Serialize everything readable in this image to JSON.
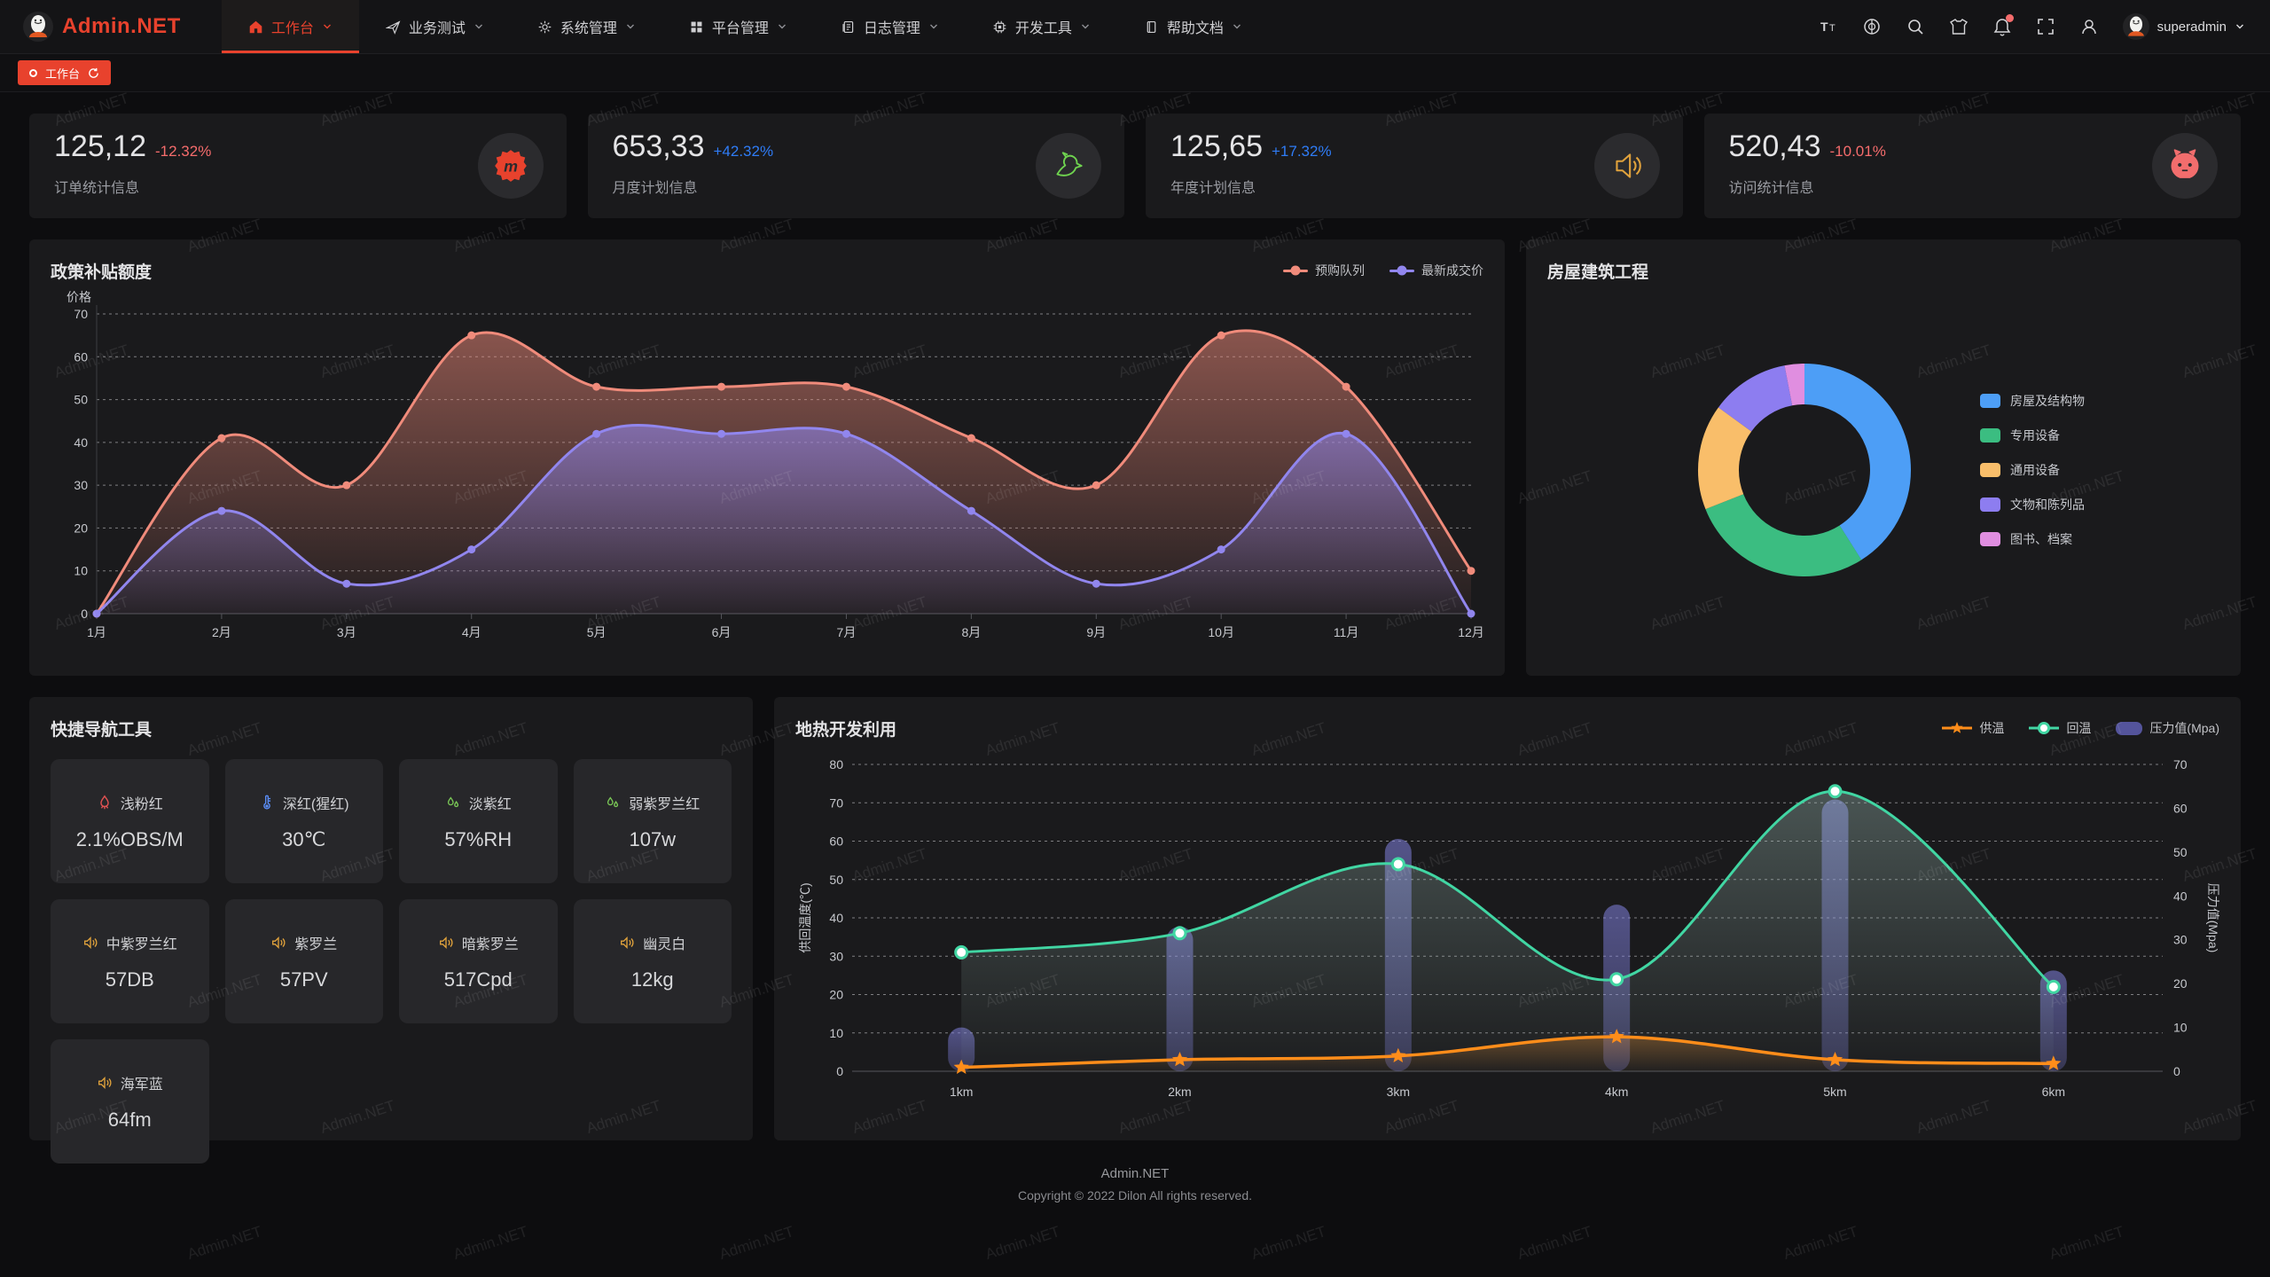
{
  "brand": {
    "name": "Admin.NET"
  },
  "colors": {
    "accent": "#e8422d",
    "delta_up": "#2f7cf6",
    "delta_down": "#f56c6c"
  },
  "header": {
    "menu": [
      {
        "label": "工作台",
        "icon": "home-icon",
        "active": true
      },
      {
        "label": "业务测试",
        "icon": "send-icon",
        "active": false
      },
      {
        "label": "系统管理",
        "icon": "gear-icon",
        "active": false
      },
      {
        "label": "平台管理",
        "icon": "grid-icon",
        "active": false
      },
      {
        "label": "日志管理",
        "icon": "log-icon",
        "active": false
      },
      {
        "label": "开发工具",
        "icon": "cpu-icon",
        "active": false
      },
      {
        "label": "帮助文档",
        "icon": "book-icon",
        "active": false
      }
    ],
    "actions": [
      "font-size",
      "language",
      "search",
      "theme",
      "notifications",
      "fullscreen",
      "user-manage"
    ],
    "user": {
      "name": "superadmin"
    }
  },
  "tabbar": {
    "active_tab": "工作台"
  },
  "stat_cards": [
    {
      "value": "125,12",
      "delta": "-12.32%",
      "trend": "down",
      "label": "订单统计信息",
      "icon": "meetup-icon"
    },
    {
      "value": "653,33",
      "delta": "+42.32%",
      "trend": "up",
      "label": "月度计划信息",
      "icon": "dove-icon"
    },
    {
      "value": "125,65",
      "delta": "+17.32%",
      "trend": "up",
      "label": "年度计划信息",
      "icon": "speaker-icon"
    },
    {
      "value": "520,43",
      "delta": "-10.01%",
      "trend": "down",
      "label": "访问统计信息",
      "icon": "octocat-icon"
    }
  ],
  "chart_data": [
    {
      "type": "line",
      "title": "政策补贴额度",
      "ylabel": "价格",
      "ylim": [
        0,
        70
      ],
      "y_ticks": [
        0,
        10,
        20,
        30,
        40,
        50,
        60,
        70
      ],
      "categories": [
        "1月",
        "2月",
        "3月",
        "4月",
        "5月",
        "6月",
        "7月",
        "8月",
        "9月",
        "10月",
        "11月",
        "12月"
      ],
      "grid": "dashed",
      "legend_position": "top-right",
      "series": [
        {
          "name": "预购队列",
          "color": "#F08B7B",
          "values": [
            0,
            41,
            30,
            65,
            53,
            53,
            53,
            41,
            30,
            65,
            53,
            10
          ]
        },
        {
          "name": "最新成交价",
          "color": "#9186EE",
          "values": [
            0,
            24,
            7,
            15,
            42,
            42,
            42,
            24,
            7,
            15,
            42,
            0
          ]
        }
      ]
    },
    {
      "type": "pie",
      "title": "房屋建筑工程",
      "legend_position": "right",
      "slices": [
        {
          "label": "房屋及结构物",
          "value": 41,
          "color": "#4D9EF6"
        },
        {
          "label": "专用设备",
          "value": 28,
          "color": "#3BBD81"
        },
        {
          "label": "通用设备",
          "value": 16,
          "color": "#F9BE6A"
        },
        {
          "label": "文物和陈列品",
          "value": 12,
          "color": "#8D7DF0"
        },
        {
          "label": "图书、档案",
          "value": 3,
          "color": "#E08EE0"
        }
      ]
    },
    {
      "type": "mixed",
      "title": "地热开发利用",
      "categories": [
        "1km",
        "2km",
        "3km",
        "4km",
        "5km",
        "6km"
      ],
      "left_axis": {
        "label": "供回温度(℃)",
        "range": [
          0,
          80
        ]
      },
      "right_axis": {
        "label": "压力值(Mpa)",
        "range": [
          0,
          70
        ]
      },
      "legend_position": "top-right",
      "series": [
        {
          "name": "供温",
          "chart": "line",
          "marker": "star",
          "axis": "left",
          "color": "#FF8D1A",
          "values": [
            1,
            3,
            4,
            9,
            3,
            2
          ]
        },
        {
          "name": "回温",
          "chart": "line",
          "marker": "circle",
          "axis": "left",
          "color": "#41D6A3",
          "values": [
            31,
            36,
            54,
            24,
            73,
            22
          ]
        },
        {
          "name": "压力值(Mpa)",
          "chart": "bar",
          "axis": "right",
          "color": "#54549B",
          "values": [
            10,
            33,
            53,
            38,
            62,
            23
          ]
        }
      ]
    }
  ],
  "quick_nav": {
    "title": "快捷导航工具",
    "items": [
      {
        "icon": "chimney-icon",
        "label": "浅粉红",
        "value": "2.1%OBS/M"
      },
      {
        "icon": "thermometer-icon",
        "label": "深红(猩红)",
        "value": "30℃"
      },
      {
        "icon": "drop-icon",
        "label": "淡紫红",
        "value": "57%RH"
      },
      {
        "icon": "drop-icon",
        "label": "弱紫罗兰红",
        "value": "107w"
      },
      {
        "icon": "speaker-icon",
        "label": "中紫罗兰红",
        "value": "57DB"
      },
      {
        "icon": "speaker-icon",
        "label": "紫罗兰",
        "value": "57PV"
      },
      {
        "icon": "speaker-icon",
        "label": "暗紫罗兰",
        "value": "517Cpd"
      },
      {
        "icon": "speaker-icon",
        "label": "幽灵白",
        "value": "12kg"
      },
      {
        "icon": "speaker-icon",
        "label": "海军蓝",
        "value": "64fm"
      }
    ]
  },
  "footer": {
    "line1": "Admin.NET",
    "line2": "Copyright © 2022 Dilon All rights reserved."
  },
  "watermark": {
    "text": "Admin.NET"
  }
}
